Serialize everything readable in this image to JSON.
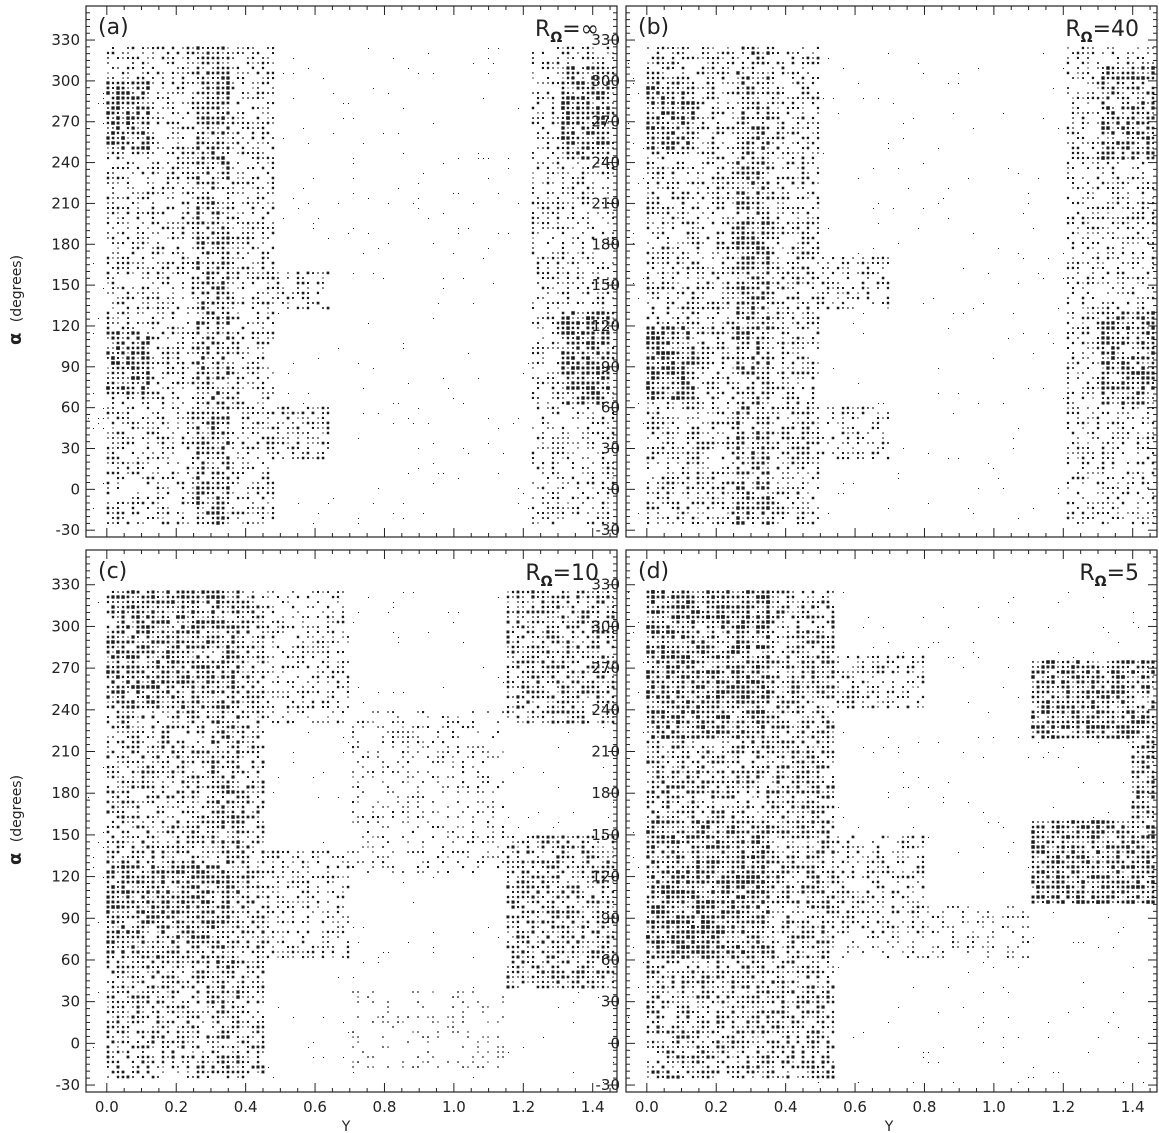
{
  "figure": {
    "ylabel_symbol": "α",
    "ylabel_text": "(degrees)",
    "xlabel": "Y"
  },
  "chart_data": [
    {
      "type": "heatmap",
      "panel_label": "(a)",
      "annotation_prefix": "R",
      "annotation_subscript": "Ω",
      "annotation_value": "=∞",
      "xlabel": "",
      "ylabel": "α (degrees)",
      "xlim": [
        -0.06,
        1.47
      ],
      "ylim": [
        -35,
        355
      ],
      "xticks": [
        "0.0",
        "0.2",
        "0.4",
        "0.6",
        "0.8",
        "1.0",
        "1.2",
        "1.4"
      ],
      "yticks": [
        "-30",
        "0",
        "30",
        "60",
        "90",
        "120",
        "150",
        "180",
        "210",
        "240",
        "270",
        "300",
        "330"
      ],
      "x_tick_values": [
        0,
        0.2,
        0.4,
        0.6,
        0.8,
        1.0,
        1.2,
        1.4
      ],
      "y_tick_values": [
        -30,
        0,
        30,
        60,
        90,
        120,
        150,
        180,
        210,
        240,
        270,
        300,
        330
      ],
      "dense_regions": [
        {
          "y": [
            0,
            0.48
          ],
          "alpha": [
            -25,
            325
          ],
          "density": 0.55
        },
        {
          "y": [
            0,
            0.12
          ],
          "alpha": [
            250,
            300
          ],
          "density": 0.95
        },
        {
          "y": [
            0,
            0.12
          ],
          "alpha": [
            70,
            115
          ],
          "density": 0.95
        },
        {
          "y": [
            0.25,
            0.35
          ],
          "alpha": [
            -25,
            325
          ],
          "density": 0.85
        },
        {
          "y": [
            1.22,
            1.47
          ],
          "alpha": [
            -25,
            325
          ],
          "density": 0.5
        },
        {
          "y": [
            1.3,
            1.45
          ],
          "alpha": [
            240,
            310
          ],
          "density": 0.95
        },
        {
          "y": [
            1.3,
            1.45
          ],
          "alpha": [
            60,
            130
          ],
          "density": 0.95
        },
        {
          "y": [
            0.45,
            0.65
          ],
          "alpha": [
            20,
            60
          ],
          "density": 0.6
        },
        {
          "y": [
            0.45,
            0.65
          ],
          "alpha": [
            130,
            160
          ],
          "density": 0.6
        }
      ]
    },
    {
      "type": "heatmap",
      "panel_label": "(b)",
      "annotation_prefix": "R",
      "annotation_subscript": "Ω",
      "annotation_value": "=40",
      "xlabel": "",
      "ylabel": "",
      "xlim": [
        -0.06,
        1.47
      ],
      "ylim": [
        -35,
        355
      ],
      "xticks": [
        "0.0",
        "0.2",
        "0.4",
        "0.6",
        "0.8",
        "1.0",
        "1.2",
        "1.4"
      ],
      "yticks": [
        "-30",
        "0",
        "30",
        "60",
        "90",
        "120",
        "150",
        "180",
        "210",
        "240",
        "270",
        "300",
        "330"
      ],
      "x_tick_values": [
        0,
        0.2,
        0.4,
        0.6,
        0.8,
        1.0,
        1.2,
        1.4
      ],
      "y_tick_values": [
        -30,
        0,
        30,
        60,
        90,
        120,
        150,
        180,
        210,
        240,
        270,
        300,
        330
      ],
      "dense_regions": [
        {
          "y": [
            0,
            0.5
          ],
          "alpha": [
            -25,
            325
          ],
          "density": 0.6
        },
        {
          "y": [
            0,
            0.14
          ],
          "alpha": [
            250,
            300
          ],
          "density": 0.95
        },
        {
          "y": [
            0,
            0.14
          ],
          "alpha": [
            65,
            120
          ],
          "density": 0.95
        },
        {
          "y": [
            0.25,
            0.35
          ],
          "alpha": [
            -25,
            325
          ],
          "density": 0.85
        },
        {
          "y": [
            1.2,
            1.47
          ],
          "alpha": [
            -25,
            325
          ],
          "density": 0.5
        },
        {
          "y": [
            1.3,
            1.47
          ],
          "alpha": [
            240,
            310
          ],
          "density": 0.9
        },
        {
          "y": [
            1.3,
            1.47
          ],
          "alpha": [
            60,
            130
          ],
          "density": 0.9
        },
        {
          "y": [
            0.45,
            0.7
          ],
          "alpha": [
            20,
            60
          ],
          "density": 0.55
        },
        {
          "y": [
            0.45,
            0.7
          ],
          "alpha": [
            130,
            170
          ],
          "density": 0.55
        }
      ]
    },
    {
      "type": "heatmap",
      "panel_label": "(c)",
      "annotation_prefix": "R",
      "annotation_subscript": "Ω",
      "annotation_value": "=10",
      "xlabel": "Y",
      "ylabel": "α (degrees)",
      "xlim": [
        -0.06,
        1.47
      ],
      "ylim": [
        -35,
        355
      ],
      "xticks": [
        "0.0",
        "0.2",
        "0.4",
        "0.6",
        "0.8",
        "1.0",
        "1.2",
        "1.4"
      ],
      "yticks": [
        "-30",
        "0",
        "30",
        "60",
        "90",
        "120",
        "150",
        "180",
        "210",
        "240",
        "270",
        "300",
        "330"
      ],
      "x_tick_values": [
        0,
        0.2,
        0.4,
        0.6,
        0.8,
        1.0,
        1.2,
        1.4
      ],
      "y_tick_values": [
        -30,
        0,
        30,
        60,
        90,
        120,
        150,
        180,
        210,
        240,
        270,
        300,
        330
      ],
      "dense_regions": [
        {
          "y": [
            0,
            0.45
          ],
          "alpha": [
            -25,
            325
          ],
          "density": 0.7
        },
        {
          "y": [
            0,
            0.3
          ],
          "alpha": [
            240,
            325
          ],
          "density": 0.9
        },
        {
          "y": [
            0,
            0.3
          ],
          "alpha": [
            60,
            130
          ],
          "density": 0.9
        },
        {
          "y": [
            0.3,
            0.38
          ],
          "alpha": [
            -25,
            325
          ],
          "density": 0.85
        },
        {
          "y": [
            1.15,
            1.47
          ],
          "alpha": [
            230,
            325
          ],
          "density": 0.75
        },
        {
          "y": [
            1.15,
            1.47
          ],
          "alpha": [
            40,
            150
          ],
          "density": 0.75
        },
        {
          "y": [
            0.4,
            0.7
          ],
          "alpha": [
            230,
            325
          ],
          "density": 0.5
        },
        {
          "y": [
            0.4,
            0.7
          ],
          "alpha": [
            60,
            140
          ],
          "density": 0.5
        },
        {
          "y": [
            0.7,
            1.15
          ],
          "alpha": [
            120,
            240
          ],
          "density": 0.35
        },
        {
          "y": [
            0.7,
            1.15
          ],
          "alpha": [
            -20,
            40
          ],
          "density": 0.2
        }
      ]
    },
    {
      "type": "heatmap",
      "panel_label": "(d)",
      "annotation_prefix": "R",
      "annotation_subscript": "Ω",
      "annotation_value": "=5",
      "xlabel": "Y",
      "ylabel": "",
      "xlim": [
        -0.06,
        1.47
      ],
      "ylim": [
        -35,
        355
      ],
      "xticks": [
        "0.0",
        "0.2",
        "0.4",
        "0.6",
        "0.8",
        "1.0",
        "1.2",
        "1.4"
      ],
      "yticks": [
        "-30",
        "0",
        "30",
        "60",
        "90",
        "120",
        "150",
        "180",
        "210",
        "240",
        "270",
        "300",
        "330"
      ],
      "x_tick_values": [
        0,
        0.2,
        0.4,
        0.6,
        0.8,
        1.0,
        1.2,
        1.4
      ],
      "y_tick_values": [
        -30,
        0,
        30,
        60,
        90,
        120,
        150,
        180,
        210,
        240,
        270,
        300,
        330
      ],
      "dense_regions": [
        {
          "y": [
            0,
            0.55
          ],
          "alpha": [
            -25,
            325
          ],
          "density": 0.75
        },
        {
          "y": [
            0,
            0.35
          ],
          "alpha": [
            220,
            325
          ],
          "density": 0.97
        },
        {
          "y": [
            0,
            0.35
          ],
          "alpha": [
            60,
            160
          ],
          "density": 0.97
        },
        {
          "y": [
            0.35,
            0.8
          ],
          "alpha": [
            240,
            280
          ],
          "density": 0.6
        },
        {
          "y": [
            0.35,
            0.8
          ],
          "alpha": [
            80,
            150
          ],
          "density": 0.6
        },
        {
          "y": [
            1.1,
            1.47
          ],
          "alpha": [
            220,
            275
          ],
          "density": 0.95
        },
        {
          "y": [
            1.1,
            1.47
          ],
          "alpha": [
            100,
            160
          ],
          "density": 0.95
        },
        {
          "y": [
            1.4,
            1.47
          ],
          "alpha": [
            160,
            220
          ],
          "density": 0.8
        },
        {
          "y": [
            0.55,
            1.1
          ],
          "alpha": [
            60,
            100
          ],
          "density": 0.35
        }
      ]
    }
  ]
}
